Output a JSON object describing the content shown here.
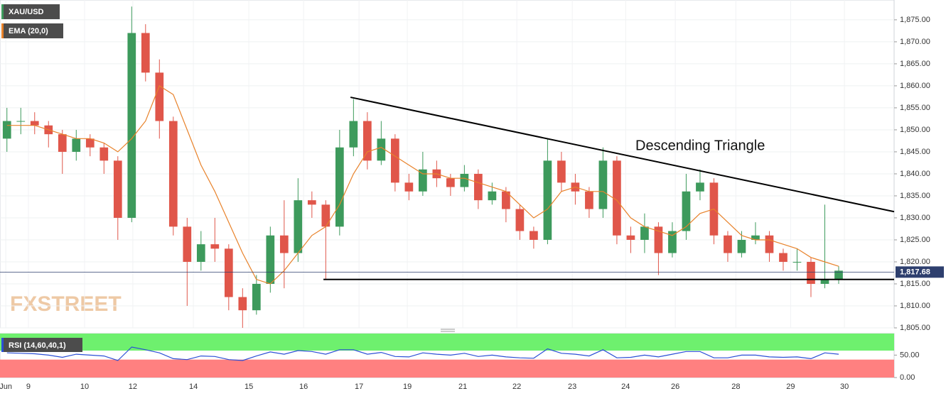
{
  "chart_data": [
    {
      "type": "candlestick",
      "watermark": "FXSTREET",
      "annotation": "Descending Triangle",
      "series": [
        {
          "name": "XAU/USD",
          "up_color": "#3d9a5c",
          "down_color": "#e0564a",
          "x": [
            3,
            9,
            15,
            21,
            27,
            33,
            39,
            45,
            51,
            57,
            63,
            69,
            75,
            81,
            87,
            93,
            99,
            105,
            111,
            117,
            123,
            129,
            135,
            141,
            147,
            153,
            159,
            165,
            171,
            177,
            183,
            189,
            195,
            201,
            207,
            213,
            219,
            225,
            231,
            237,
            243,
            249,
            255,
            261,
            267,
            273,
            279,
            285,
            291,
            297,
            303,
            309,
            315,
            321,
            327,
            333,
            339,
            345,
            351,
            357,
            363
          ],
          "open": [
            1848,
            1852,
            1852,
            1851,
            1849,
            1845,
            1848,
            1846,
            1843,
            1830,
            1872,
            1863,
            1852,
            1828,
            1820,
            1824,
            1823,
            1812,
            1809,
            1815,
            1826,
            1822,
            1834,
            1833,
            1828,
            1846,
            1852,
            1843,
            1848,
            1838,
            1836,
            1841,
            1839,
            1837,
            1840,
            1834,
            1836,
            1832,
            1827,
            1825,
            1843,
            1838,
            1836,
            1832,
            1843,
            1826,
            1825,
            1828,
            1822,
            1827,
            1836,
            1838,
            1826,
            1822,
            1825,
            1826,
            1822,
            1820,
            1820,
            1815,
            1816
          ],
          "high": [
            1855,
            1855,
            1854,
            1852,
            1850,
            1850,
            1849,
            1847,
            1844,
            1878,
            1874,
            1866,
            1853,
            1830,
            1827,
            1830,
            1824,
            1814,
            1817,
            1828,
            1834,
            1839,
            1836,
            1834,
            1850,
            1857,
            1854,
            1852,
            1849,
            1840,
            1845,
            1843,
            1840,
            1842,
            1841,
            1838,
            1837,
            1833,
            1828,
            1848,
            1845,
            1840,
            1837,
            1846,
            1844,
            1828,
            1831,
            1829,
            1829,
            1840,
            1841,
            1839,
            1827,
            1827,
            1829,
            1827,
            1823,
            1823,
            1821,
            1833,
            1819
          ],
          "low": [
            1845,
            1849,
            1849,
            1846,
            1840,
            1843,
            1844,
            1840,
            1825,
            1829,
            1861,
            1848,
            1826,
            1810,
            1818,
            1820,
            1809,
            1805,
            1808,
            1813,
            1814,
            1820,
            1830,
            1816,
            1826,
            1844,
            1841,
            1842,
            1836,
            1834,
            1835,
            1837,
            1835,
            1836,
            1832,
            1833,
            1829,
            1825,
            1823,
            1824,
            1836,
            1833,
            1830,
            1830,
            1824,
            1822,
            1822,
            1817,
            1821,
            1825,
            1834,
            1824,
            1820,
            1821,
            1824,
            1820,
            1818,
            1818,
            1812,
            1814,
            1815
          ],
          "close": [
            1852,
            1852,
            1851,
            1849,
            1845,
            1848,
            1846,
            1843,
            1830,
            1872,
            1863,
            1852,
            1828,
            1820,
            1824,
            1823,
            1812,
            1809,
            1815,
            1826,
            1822,
            1834,
            1833,
            1828,
            1846,
            1852,
            1843,
            1848,
            1838,
            1836,
            1841,
            1839,
            1837,
            1840,
            1834,
            1836,
            1832,
            1827,
            1825,
            1843,
            1838,
            1836,
            1832,
            1843,
            1826,
            1825,
            1828,
            1822,
            1827,
            1836,
            1838,
            1826,
            1822,
            1825,
            1826,
            1822,
            1820,
            1820,
            1815,
            1816,
            1818
          ]
        },
        {
          "name": "EMA (20,0)",
          "color": "#e8822a",
          "x": [
            3,
            9,
            15,
            21,
            27,
            33,
            39,
            45,
            51,
            57,
            63,
            69,
            75,
            81,
            87,
            93,
            99,
            105,
            111,
            117,
            123,
            129,
            135,
            141,
            147,
            153,
            159,
            165,
            171,
            177,
            183,
            189,
            195,
            201,
            207,
            213,
            219,
            225,
            231,
            237,
            243,
            249,
            255,
            261,
            267,
            273,
            279,
            285,
            291,
            297,
            303,
            309,
            315,
            321,
            327,
            333,
            339,
            345,
            351,
            357,
            363
          ],
          "values": [
            1851,
            1851,
            1851,
            1850,
            1849,
            1848,
            1848,
            1847,
            1845,
            1848,
            1852,
            1860,
            1858,
            1850,
            1842,
            1836,
            1829,
            1822,
            1816,
            1815,
            1818,
            1822,
            1826,
            1828,
            1833,
            1840,
            1845,
            1846,
            1844,
            1842,
            1840,
            1840,
            1839,
            1839,
            1838,
            1837,
            1836,
            1833,
            1830,
            1832,
            1836,
            1837,
            1836,
            1836,
            1834,
            1830,
            1828,
            1827,
            1826,
            1828,
            1831,
            1832,
            1829,
            1826,
            1825,
            1825,
            1824,
            1823,
            1821,
            1820,
            1819
          ]
        }
      ],
      "trendlines": [
        {
          "x": [
            151.7,
            387
          ],
          "values": [
            1857.4,
            1831.4
          ],
          "color": "#000000"
        },
        {
          "x": [
            140,
            387
          ],
          "values": [
            1816,
            1816
          ],
          "color": "#000000"
        }
      ],
      "last_price": {
        "value": 1817.68,
        "label": "1,817.68"
      },
      "xlim": [
        0,
        387
      ],
      "xticks": [
        {
          "value": 2.5,
          "label": "Jun"
        },
        {
          "value": 12.3,
          "label": "9"
        },
        {
          "value": 36.6,
          "label": "10"
        },
        {
          "value": 57.5,
          "label": "12"
        },
        {
          "value": 83.7,
          "label": "14"
        },
        {
          "value": 107.7,
          "label": "15"
        },
        {
          "value": 131.4,
          "label": "16"
        },
        {
          "value": 155.4,
          "label": "17"
        },
        {
          "value": 176.3,
          "label": "19"
        },
        {
          "value": 200.3,
          "label": "21"
        },
        {
          "value": 223.7,
          "label": "22"
        },
        {
          "value": 247.7,
          "label": "23"
        },
        {
          "value": 270.8,
          "label": "24"
        },
        {
          "value": 292.3,
          "label": "26"
        },
        {
          "value": 318.5,
          "label": "28"
        },
        {
          "value": 342.2,
          "label": "29"
        },
        {
          "value": 365.5,
          "label": "30"
        }
      ],
      "ylim": [
        1805,
        1879.5
      ],
      "yticks": [
        {
          "value": 1805,
          "label": "1,805.00"
        },
        {
          "value": 1810,
          "label": "1,810.00"
        },
        {
          "value": 1815,
          "label": "1,815.00"
        },
        {
          "value": 1820,
          "label": "1,820.00"
        },
        {
          "value": 1825,
          "label": "1,825.00"
        },
        {
          "value": 1830,
          "label": "1,830.00"
        },
        {
          "value": 1835,
          "label": "1,835.00"
        },
        {
          "value": 1840,
          "label": "1,840.00"
        },
        {
          "value": 1845,
          "label": "1,845.00"
        },
        {
          "value": 1850,
          "label": "1,850.00"
        },
        {
          "value": 1855,
          "label": "1,855.00"
        },
        {
          "value": 1860,
          "label": "1,860.00"
        },
        {
          "value": 1865,
          "label": "1,865.00"
        },
        {
          "value": 1870,
          "label": "1,870.00"
        },
        {
          "value": 1875,
          "label": "1,875.00"
        }
      ],
      "grid": true
    },
    {
      "type": "line",
      "series": [
        {
          "name": "RSI (14,60,40,1)",
          "color": "#2b4fd6",
          "x": [
            3,
            9,
            15,
            21,
            27,
            33,
            39,
            45,
            51,
            57,
            63,
            69,
            75,
            81,
            87,
            93,
            99,
            105,
            111,
            117,
            123,
            129,
            135,
            141,
            147,
            153,
            159,
            165,
            171,
            177,
            183,
            189,
            195,
            201,
            207,
            213,
            219,
            225,
            231,
            237,
            243,
            249,
            255,
            261,
            267,
            273,
            279,
            285,
            291,
            297,
            303,
            309,
            315,
            321,
            327,
            333,
            339,
            345,
            351,
            357,
            363
          ],
          "values": [
            55,
            54,
            53,
            50,
            45,
            52,
            50,
            48,
            38,
            68,
            62,
            55,
            42,
            40,
            48,
            47,
            40,
            38,
            48,
            57,
            52,
            60,
            58,
            52,
            62,
            62,
            52,
            56,
            47,
            46,
            55,
            52,
            50,
            54,
            47,
            50,
            46,
            44,
            43,
            64,
            54,
            52,
            48,
            62,
            44,
            45,
            50,
            46,
            52,
            58,
            58,
            44,
            44,
            50,
            50,
            46,
            45,
            46,
            42,
            55,
            52
          ]
        }
      ],
      "upper_band": 60,
      "lower_band": 40,
      "upper_color": "#6ef06e",
      "lower_color": "#ff8080",
      "xlim": [
        0,
        387
      ],
      "ylim": [
        0,
        98
      ],
      "yticks": [
        {
          "value": 0,
          "label": "0.00"
        },
        {
          "value": 50,
          "label": "50.00"
        }
      ]
    }
  ]
}
